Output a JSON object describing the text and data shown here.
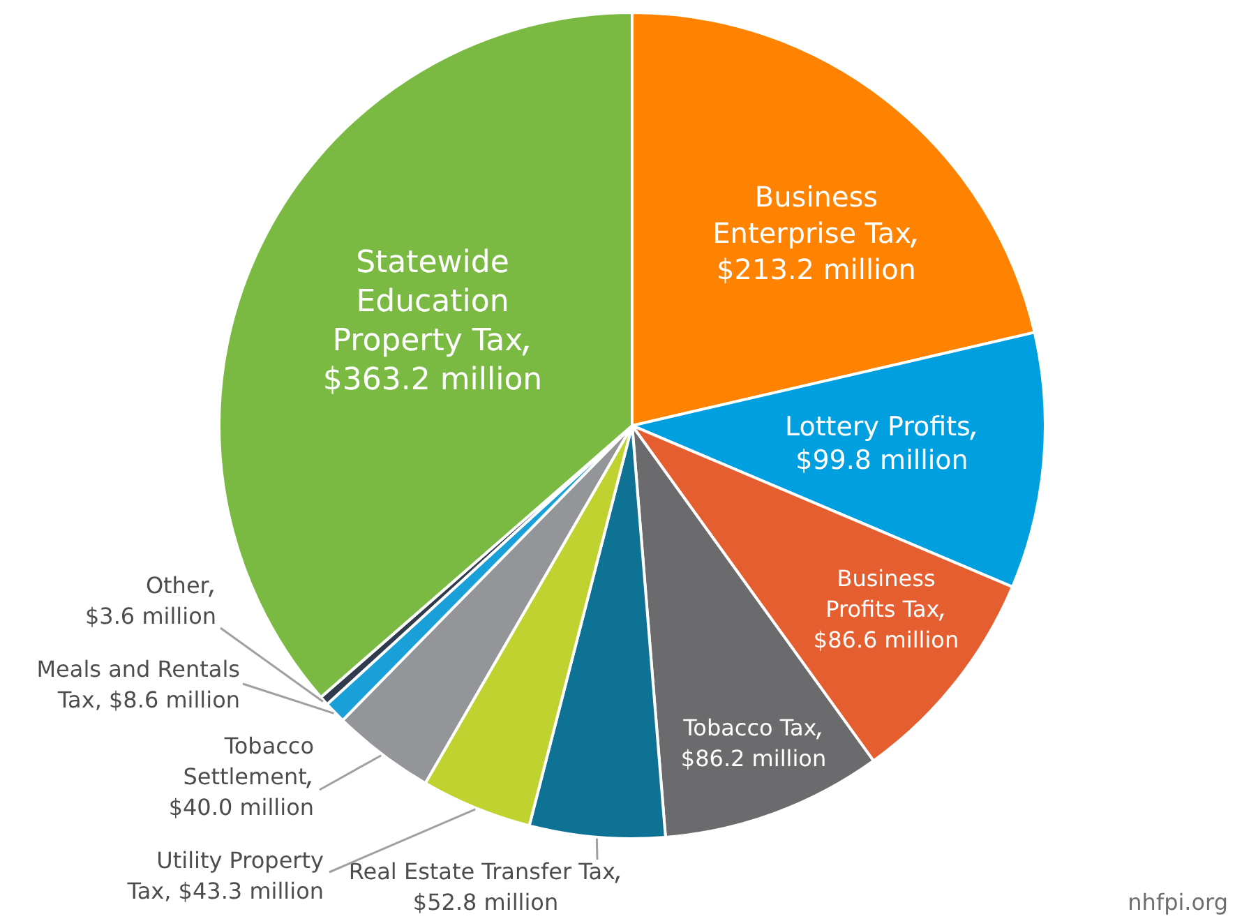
{
  "chart_data": {
    "type": "pie",
    "categories": [
      "Business Enterprise Tax",
      "Lottery Profits",
      "Business Profits Tax",
      "Tobacco Tax",
      "Real Estate Transfer Tax",
      "Utility Property Tax",
      "Tobacco Settlement",
      "Meals and Rentals Tax",
      "Other",
      "Statewide Education Property Tax"
    ],
    "values": [
      213.2,
      99.8,
      86.6,
      86.2,
      52.8,
      43.3,
      40.0,
      8.6,
      3.6,
      363.2
    ],
    "value_labels": [
      "$213.2 million",
      "$99.8 million",
      "$86.6 million",
      "$86.2 million",
      "$52.8 million",
      "$43.3 million",
      "$40.0 million",
      "$8.6 million",
      "$3.6 million",
      "$363.2 million"
    ],
    "colors": [
      "#ff8200",
      "#009fdf",
      "#e55e30",
      "#6b6b6d",
      "#0d7293",
      "#bfd230",
      "#939598",
      "#1aa0d8",
      "#2f3a4c",
      "#7aba43"
    ],
    "annotations": [
      "nhfpi.org"
    ]
  }
}
